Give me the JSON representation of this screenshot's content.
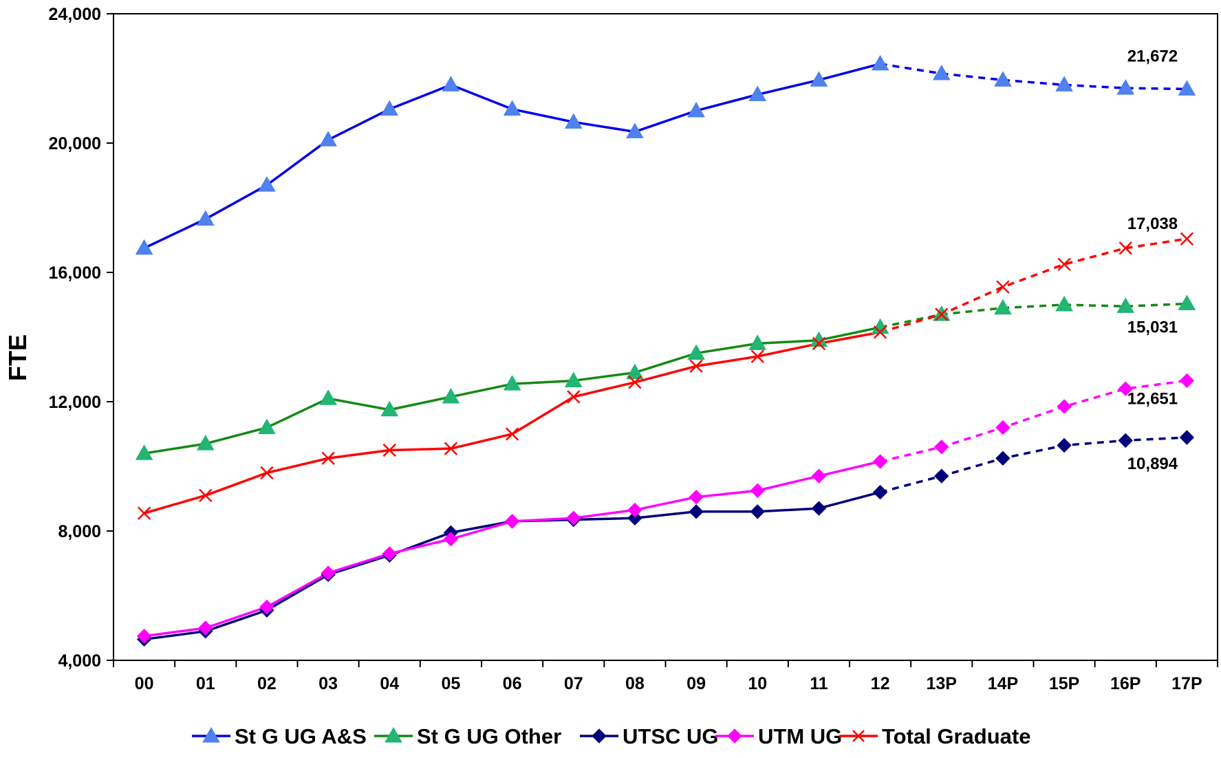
{
  "chart_data": {
    "type": "line",
    "title": "",
    "xlabel": "",
    "ylabel": "FTE",
    "ylim": [
      4000,
      24000
    ],
    "yticks": [
      4000,
      8000,
      12000,
      16000,
      20000,
      24000
    ],
    "ytick_labels": [
      "4,000",
      "8,000",
      "12,000",
      "16,000",
      "20,000",
      "24,000"
    ],
    "categories": [
      "00",
      "01",
      "02",
      "03",
      "04",
      "05",
      "06",
      "07",
      "08",
      "09",
      "10",
      "11",
      "12",
      "13P",
      "14P",
      "15P",
      "16P",
      "17P"
    ],
    "projection_start_index": 12,
    "grid": false,
    "legend_position": "bottom",
    "series": [
      {
        "name": "St G UG A&S",
        "color": "#0000ee",
        "marker": "triangle",
        "marker_color": "#4f81f0",
        "values": [
          16750,
          17650,
          18700,
          20100,
          21050,
          21800,
          21050,
          20650,
          20350,
          21000,
          21500,
          21950,
          22450,
          22150,
          21950,
          21800,
          21700,
          21672
        ]
      },
      {
        "name": "St G UG Other",
        "color": "#138a13",
        "marker": "triangle",
        "marker_color": "#22b573",
        "values": [
          10400,
          10700,
          11200,
          12100,
          11750,
          12150,
          12550,
          12650,
          12900,
          13500,
          13800,
          13900,
          14300,
          14700,
          14900,
          15000,
          14950,
          15031
        ]
      },
      {
        "name": "UTSC UG",
        "color": "#00007a",
        "marker": "diamond",
        "marker_color": "#00007a",
        "values": [
          4650,
          4900,
          5550,
          6650,
          7250,
          7950,
          8300,
          8350,
          8400,
          8600,
          8600,
          8700,
          9200,
          9700,
          10250,
          10650,
          10800,
          10894
        ]
      },
      {
        "name": "UTM UG",
        "color": "#ff00ff",
        "marker": "diamond",
        "marker_color": "#ff00ff",
        "values": [
          4750,
          5000,
          5650,
          6700,
          7300,
          7750,
          8300,
          8400,
          8650,
          9050,
          9250,
          9700,
          10150,
          10600,
          11200,
          11850,
          12400,
          12651
        ]
      },
      {
        "name": "Total Graduate",
        "color": "#ff0000",
        "marker": "x",
        "marker_color": "#ff0000",
        "values": [
          8550,
          9100,
          9800,
          10250,
          10500,
          10550,
          11000,
          12150,
          12600,
          13100,
          13400,
          13800,
          14150,
          14700,
          15550,
          16250,
          16750,
          17038
        ]
      }
    ],
    "end_labels": [
      {
        "text": "21,672",
        "series_index": 0
      },
      {
        "text": "17,038",
        "series_index": 4
      },
      {
        "text": "15,031",
        "series_index": 1
      },
      {
        "text": "12,651",
        "series_index": 3
      },
      {
        "text": "10,894",
        "series_index": 2
      }
    ]
  }
}
